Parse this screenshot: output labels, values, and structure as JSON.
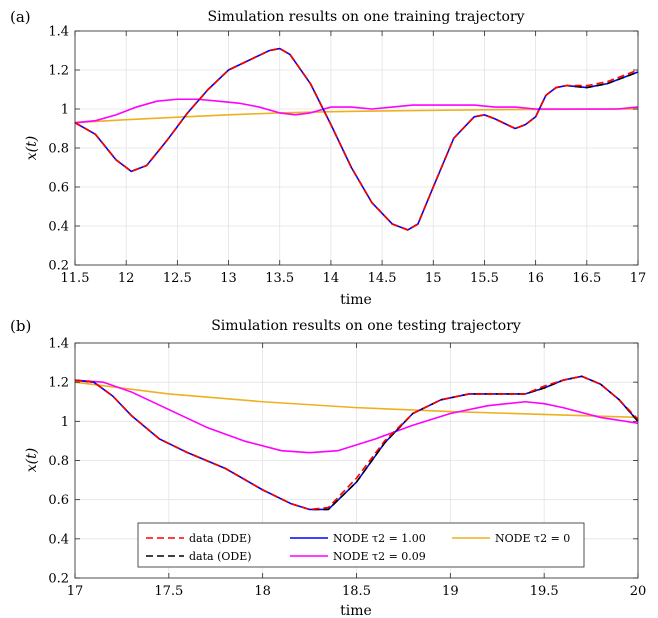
{
  "chart_data": [
    {
      "type": "line",
      "panel_label": "(a)",
      "title": "Simulation results on one training trajectory",
      "xlabel": "time",
      "ylabel": "x(t)",
      "xlim": [
        11.5,
        17
      ],
      "ylim": [
        0.2,
        1.4
      ],
      "xticks": [
        11.5,
        12,
        12.5,
        13,
        13.5,
        14,
        14.5,
        15,
        15.5,
        16,
        16.5,
        17
      ],
      "xtick_labels": [
        "11.5",
        "12",
        "12.5",
        "13",
        "13.5",
        "14",
        "14.5",
        "15",
        "15.5",
        "16",
        "16.5",
        "17"
      ],
      "yticks": [
        0.2,
        0.4,
        0.6,
        0.8,
        1.0,
        1.2,
        1.4
      ],
      "ytick_labels": [
        "0.2",
        "0.4",
        "0.6",
        "0.8",
        "1",
        "1.2",
        "1.4"
      ],
      "grid": true,
      "series": [
        {
          "name": "data (DDE)",
          "color": "#ff0000",
          "dash": true,
          "x": [
            11.5,
            11.7,
            11.9,
            12.05,
            12.2,
            12.4,
            12.6,
            12.8,
            13.0,
            13.2,
            13.4,
            13.5,
            13.6,
            13.8,
            14.0,
            14.2,
            14.4,
            14.6,
            14.75,
            14.85,
            15.0,
            15.2,
            15.4,
            15.5,
            15.6,
            15.8,
            15.9,
            16.0,
            16.1,
            16.2,
            16.3,
            16.5,
            16.7,
            16.9,
            17.0
          ],
          "y": [
            0.93,
            0.87,
            0.74,
            0.68,
            0.71,
            0.84,
            0.98,
            1.1,
            1.2,
            1.25,
            1.3,
            1.31,
            1.28,
            1.13,
            0.92,
            0.7,
            0.52,
            0.41,
            0.38,
            0.41,
            0.6,
            0.85,
            0.96,
            0.97,
            0.95,
            0.9,
            0.92,
            0.96,
            1.07,
            1.11,
            1.12,
            1.12,
            1.14,
            1.18,
            1.2
          ]
        },
        {
          "name": "data (ODE)",
          "color": "#000000",
          "dash": true,
          "x": [
            11.5,
            11.7,
            11.9,
            12.05,
            12.2,
            12.4,
            12.6,
            12.8,
            13.0,
            13.2,
            13.4,
            13.5,
            13.6,
            13.8,
            14.0,
            14.2,
            14.4,
            14.6,
            14.75,
            14.85,
            15.0,
            15.2,
            15.4,
            15.5,
            15.6,
            15.8,
            15.9,
            16.0,
            16.1,
            16.2,
            16.3,
            16.5,
            16.7,
            16.9,
            17.0
          ],
          "y": [
            0.93,
            0.87,
            0.74,
            0.68,
            0.71,
            0.84,
            0.98,
            1.1,
            1.2,
            1.25,
            1.3,
            1.31,
            1.28,
            1.13,
            0.92,
            0.7,
            0.52,
            0.41,
            0.38,
            0.41,
            0.6,
            0.85,
            0.96,
            0.97,
            0.95,
            0.9,
            0.92,
            0.96,
            1.07,
            1.11,
            1.12,
            1.11,
            1.13,
            1.17,
            1.19
          ]
        },
        {
          "name": "NODE τ2 = 1.00",
          "color": "#0000ff",
          "dash": false,
          "x": [
            11.5,
            11.7,
            11.9,
            12.05,
            12.2,
            12.4,
            12.6,
            12.8,
            13.0,
            13.2,
            13.4,
            13.5,
            13.6,
            13.8,
            14.0,
            14.2,
            14.4,
            14.6,
            14.75,
            14.85,
            15.0,
            15.2,
            15.4,
            15.5,
            15.6,
            15.8,
            15.9,
            16.0,
            16.1,
            16.2,
            16.3,
            16.5,
            16.7,
            16.9,
            17.0
          ],
          "y": [
            0.93,
            0.87,
            0.74,
            0.68,
            0.71,
            0.84,
            0.98,
            1.1,
            1.2,
            1.25,
            1.3,
            1.31,
            1.28,
            1.13,
            0.92,
            0.7,
            0.52,
            0.41,
            0.38,
            0.41,
            0.6,
            0.85,
            0.96,
            0.97,
            0.95,
            0.9,
            0.92,
            0.96,
            1.07,
            1.11,
            1.12,
            1.11,
            1.13,
            1.17,
            1.19
          ]
        },
        {
          "name": "NODE τ2 = 0.09",
          "color": "#ff00ff",
          "dash": false,
          "x": [
            11.5,
            11.7,
            11.9,
            12.1,
            12.3,
            12.5,
            12.7,
            12.9,
            13.1,
            13.3,
            13.5,
            13.65,
            13.8,
            14.0,
            14.2,
            14.4,
            14.6,
            14.8,
            15.0,
            15.2,
            15.4,
            15.6,
            15.8,
            16.0,
            16.2,
            16.4,
            16.6,
            16.8,
            17.0
          ],
          "y": [
            0.93,
            0.94,
            0.97,
            1.01,
            1.04,
            1.05,
            1.05,
            1.04,
            1.03,
            1.01,
            0.98,
            0.97,
            0.98,
            1.01,
            1.01,
            1.0,
            1.01,
            1.02,
            1.02,
            1.02,
            1.02,
            1.01,
            1.01,
            1.0,
            1.0,
            1.0,
            1.0,
            1.0,
            1.01
          ]
        },
        {
          "name": "NODE τ2 = 0",
          "color": "#edb120",
          "dash": false,
          "x": [
            11.5,
            12.0,
            12.5,
            13.0,
            13.5,
            14.0,
            14.5,
            15.0,
            15.5,
            16.0,
            16.5,
            17.0
          ],
          "y": [
            0.93,
            0.945,
            0.958,
            0.97,
            0.98,
            0.986,
            0.99,
            0.993,
            0.996,
            0.998,
            0.999,
            1.0
          ]
        }
      ]
    },
    {
      "type": "line",
      "panel_label": "(b)",
      "title": "Simulation results on one testing trajectory",
      "xlabel": "time",
      "ylabel": "x(t)",
      "xlim": [
        17,
        20
      ],
      "ylim": [
        0.2,
        1.4
      ],
      "xticks": [
        17,
        17.5,
        18,
        18.5,
        19,
        19.5,
        20
      ],
      "xtick_labels": [
        "17",
        "17.5",
        "18",
        "18.5",
        "19",
        "19.5",
        "20"
      ],
      "yticks": [
        0.2,
        0.4,
        0.6,
        0.8,
        1.0,
        1.2,
        1.4
      ],
      "ytick_labels": [
        "0.2",
        "0.4",
        "0.6",
        "0.8",
        "1",
        "1.2",
        "1.4"
      ],
      "grid": true,
      "legend_position": "bottom",
      "series": [
        {
          "name": "data (DDE)",
          "color": "#ff0000",
          "dash": true,
          "x": [
            17.0,
            17.1,
            17.2,
            17.3,
            17.45,
            17.6,
            17.8,
            18.0,
            18.15,
            18.25,
            18.35,
            18.5,
            18.65,
            18.8,
            18.95,
            19.1,
            19.25,
            19.4,
            19.5,
            19.6,
            19.7,
            19.8,
            19.9,
            20.0
          ],
          "y": [
            1.21,
            1.2,
            1.13,
            1.03,
            0.91,
            0.84,
            0.76,
            0.65,
            0.58,
            0.55,
            0.56,
            0.71,
            0.9,
            1.04,
            1.11,
            1.14,
            1.14,
            1.14,
            1.18,
            1.21,
            1.23,
            1.19,
            1.11,
            1.01
          ]
        },
        {
          "name": "data (ODE)",
          "color": "#000000",
          "dash": true,
          "x": [
            17.0,
            17.1,
            17.2,
            17.3,
            17.45,
            17.6,
            17.8,
            18.0,
            18.15,
            18.25,
            18.35,
            18.5,
            18.65,
            18.8,
            18.95,
            19.1,
            19.25,
            19.4,
            19.5,
            19.6,
            19.7,
            19.8,
            19.9,
            20.0
          ],
          "y": [
            1.21,
            1.2,
            1.13,
            1.03,
            0.91,
            0.84,
            0.76,
            0.65,
            0.58,
            0.55,
            0.55,
            0.69,
            0.89,
            1.04,
            1.11,
            1.14,
            1.14,
            1.14,
            1.17,
            1.21,
            1.23,
            1.19,
            1.11,
            1.0
          ]
        },
        {
          "name": "NODE τ2 = 1.00",
          "color": "#0000ff",
          "dash": false,
          "x": [
            17.0,
            17.1,
            17.2,
            17.3,
            17.45,
            17.6,
            17.8,
            18.0,
            18.15,
            18.25,
            18.35,
            18.5,
            18.65,
            18.8,
            18.95,
            19.1,
            19.25,
            19.4,
            19.5,
            19.6,
            19.7,
            19.8,
            19.9,
            20.0
          ],
          "y": [
            1.21,
            1.2,
            1.13,
            1.03,
            0.91,
            0.84,
            0.76,
            0.65,
            0.58,
            0.55,
            0.55,
            0.69,
            0.89,
            1.04,
            1.11,
            1.14,
            1.14,
            1.14,
            1.17,
            1.21,
            1.23,
            1.19,
            1.11,
            1.0
          ]
        },
        {
          "name": "NODE τ2 = 0.09",
          "color": "#ff00ff",
          "dash": false,
          "x": [
            17.0,
            17.15,
            17.3,
            17.5,
            17.7,
            17.9,
            18.1,
            18.25,
            18.4,
            18.6,
            18.8,
            19.0,
            19.2,
            19.4,
            19.5,
            19.6,
            19.8,
            20.0
          ],
          "y": [
            1.21,
            1.2,
            1.15,
            1.06,
            0.97,
            0.9,
            0.85,
            0.84,
            0.85,
            0.91,
            0.98,
            1.04,
            1.08,
            1.1,
            1.09,
            1.07,
            1.02,
            0.99
          ]
        },
        {
          "name": "NODE τ2 = 0",
          "color": "#edb120",
          "dash": false,
          "x": [
            17.0,
            17.5,
            18.0,
            18.5,
            19.0,
            19.5,
            20.0
          ],
          "y": [
            1.2,
            1.14,
            1.1,
            1.07,
            1.05,
            1.035,
            1.02
          ]
        }
      ]
    }
  ],
  "legend": {
    "items": [
      {
        "label": "data (DDE)",
        "color": "#ff0000",
        "dash": true
      },
      {
        "label": "data (ODE)",
        "color": "#000000",
        "dash": true
      },
      {
        "label": "NODE τ2 = 1.00",
        "color": "#0000ff",
        "dash": false
      },
      {
        "label": "NODE τ2 = 0.09",
        "color": "#ff00ff",
        "dash": false
      },
      {
        "label": "NODE τ2 = 0",
        "color": "#edb120",
        "dash": false
      }
    ]
  }
}
